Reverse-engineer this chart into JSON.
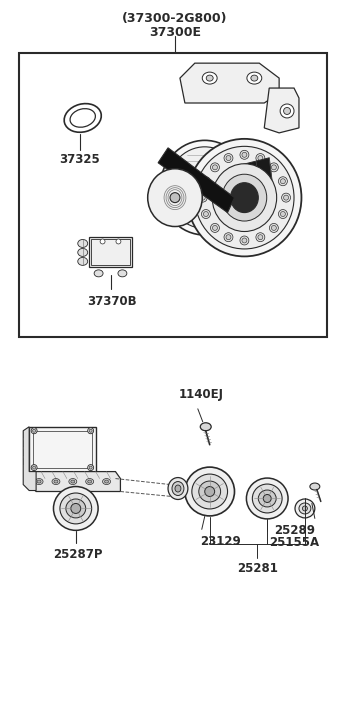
{
  "bg_color": "#ffffff",
  "fig_width": 3.45,
  "fig_height": 7.27,
  "dpi": 100,
  "line_color": "#2a2a2a",
  "text_color": "#2a2a2a",
  "font_size_main": 8.5,
  "font_size_title": 9.0,
  "top_label1": "(37300-2G800)",
  "top_label2": "37300E",
  "label_37325": "37325",
  "label_37370B": "37370B",
  "label_1140EJ": "1140EJ",
  "label_25287P": "25287P",
  "label_23129": "23129",
  "label_25155A": "25155A",
  "label_25289": "25289",
  "label_25281": "25281"
}
